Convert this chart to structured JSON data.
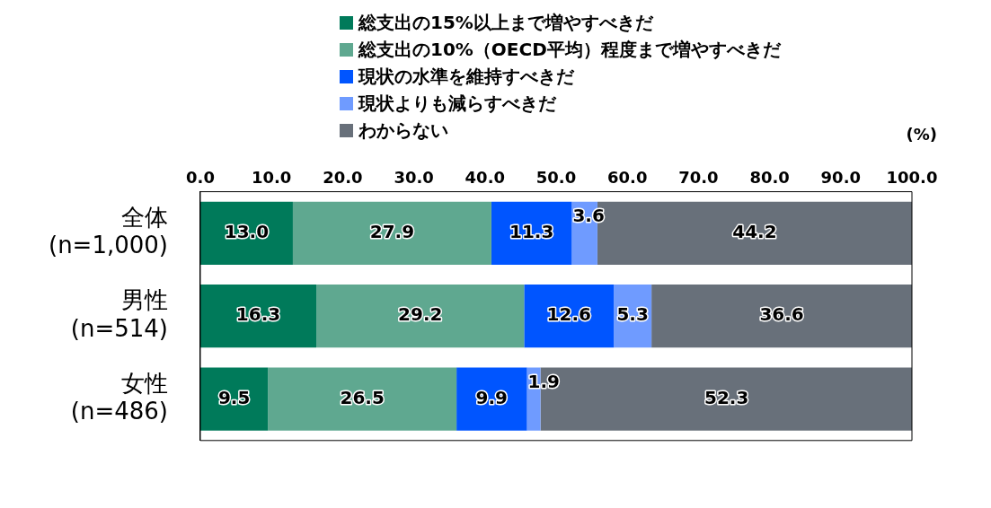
{
  "chart_data": {
    "type": "bar",
    "orientation": "horizontal",
    "stacked": true,
    "legend": "top",
    "grid": false,
    "xlabel": "(%)",
    "categories": [
      "全体\n(n=1,000)",
      "男性\n(n=514)",
      "女性\n(n=486)"
    ],
    "xlim": [
      0,
      100
    ],
    "xticks": [
      {
        "value": 0,
        "label": "0.0"
      },
      {
        "value": 10,
        "label": "10.0"
      },
      {
        "value": 20,
        "label": "20.0"
      },
      {
        "value": 30,
        "label": "30.0"
      },
      {
        "value": 40,
        "label": "40.0"
      },
      {
        "value": 50,
        "label": "50.0"
      },
      {
        "value": 60,
        "label": "60.0"
      },
      {
        "value": 70,
        "label": "70.0"
      },
      {
        "value": 80,
        "label": "80.0"
      },
      {
        "value": 90,
        "label": "90.0"
      },
      {
        "value": 100,
        "label": "100.0"
      }
    ],
    "series": [
      {
        "name": "総支出の15%以上まで増やすべきだ",
        "color": "#007a5a",
        "values": [
          13.0,
          16.3,
          9.5
        ],
        "value_labels": [
          "13.0",
          "16.3",
          "9.5"
        ]
      },
      {
        "name": "総支出の10%（OECD平均）程度まで増やすべきだ",
        "color": "#5fa890",
        "values": [
          27.9,
          29.2,
          26.5
        ],
        "value_labels": [
          "27.9",
          "29.2",
          "26.5"
        ]
      },
      {
        "name": "現状の水準を維持すべきだ",
        "color": "#0055ff",
        "values": [
          11.3,
          12.6,
          9.9
        ],
        "value_labels": [
          "11.3",
          "12.6",
          "9.9"
        ]
      },
      {
        "name": "現状よりも減らすべきだ",
        "color": "#6f9bff",
        "values": [
          3.6,
          5.3,
          1.9
        ],
        "value_labels": [
          "3.6",
          "5.3",
          "1.9"
        ]
      },
      {
        "name": "わからない",
        "color": "#68707a",
        "values": [
          44.2,
          36.6,
          52.3
        ],
        "value_labels": [
          "44.2",
          "36.6",
          "52.3"
        ]
      }
    ]
  }
}
